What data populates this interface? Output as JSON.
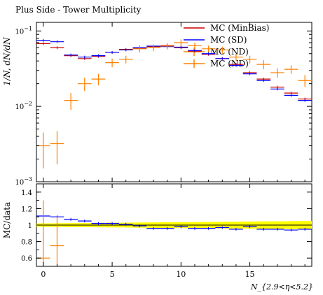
{
  "chart_data": {
    "type": "scatter",
    "title": "Plus Side - Tower Multiplicity",
    "xlabel": "N_{2.9<η<5.2}",
    "ylabel": "1/N, dN/dN",
    "ratio_ylabel": "MC/data",
    "x_range": [
      -0.5,
      19.5
    ],
    "y_range": [
      0.001,
      0.13
    ],
    "y_scale": "log",
    "ratio_range": [
      0.5,
      1.5
    ],
    "x_ticks": [
      "0",
      "5",
      "10",
      "15"
    ],
    "y_ticks": [
      "10^{-1}",
      "10^{-2}",
      "10^{-3}"
    ],
    "ratio_ticks": [
      "0.6",
      "0.8",
      "1",
      "1.2",
      "1.4"
    ],
    "legend_position": "top-right",
    "legend": [
      "MC (MinBias)",
      "MC (SD)",
      "MC (ND)",
      "MC (ND)"
    ],
    "colors": {
      "minbias": "#cc0000",
      "sd": "#0000ff",
      "nd": "#ff8000",
      "band": "#ffff00",
      "frame": "#000000"
    },
    "x": [
      0,
      1,
      2,
      3,
      4,
      5,
      6,
      7,
      8,
      9,
      10,
      11,
      12,
      13,
      14,
      15,
      16,
      17,
      18,
      19
    ],
    "series": [
      {
        "name": "MC (MinBias)",
        "color": "#cc0000",
        "values": [
          0.068,
          0.06,
          0.047,
          0.043,
          0.046,
          0.052,
          0.057,
          0.059,
          0.062,
          0.064,
          0.06,
          0.054,
          0.049,
          0.043,
          0.036,
          0.028,
          0.023,
          0.018,
          0.015,
          0.0125
        ]
      },
      {
        "name": "MC (SD)",
        "color": "#0000ff",
        "values": [
          0.075,
          0.072,
          0.048,
          0.045,
          0.047,
          0.052,
          0.056,
          0.06,
          0.063,
          0.062,
          0.061,
          0.055,
          0.05,
          0.043,
          0.035,
          0.027,
          0.022,
          0.017,
          0.014,
          0.012
        ]
      },
      {
        "name": "MC (ND)",
        "color": "#ff8000",
        "values": [
          0.003,
          0.0032,
          0.012,
          0.02,
          0.023,
          0.038,
          0.042,
          0.058,
          0.06,
          0.063,
          0.07,
          0.064,
          0.058,
          0.056,
          0.045,
          0.042,
          0.036,
          0.028,
          0.031,
          0.022
        ],
        "errors": [
          0.0015,
          0.0015,
          0.003,
          0.004,
          0.004,
          0.005,
          0.005,
          0.006,
          0.006,
          0.006,
          0.007,
          0.006,
          0.006,
          0.006,
          0.005,
          0.005,
          0.005,
          0.004,
          0.004,
          0.004
        ]
      }
    ],
    "ratio": [
      {
        "name": "MC (SD)",
        "color": "#0000ff",
        "values": [
          1.11,
          1.1,
          1.07,
          1.05,
          1.02,
          1.02,
          1.01,
          0.99,
          0.96,
          0.96,
          0.98,
          0.96,
          0.96,
          0.97,
          0.95,
          0.98,
          0.95,
          0.95,
          0.94,
          0.95
        ]
      },
      {
        "name": "MC (ND)",
        "color": "#ff8000",
        "values": [
          0.6,
          0.75
        ]
      }
    ]
  }
}
